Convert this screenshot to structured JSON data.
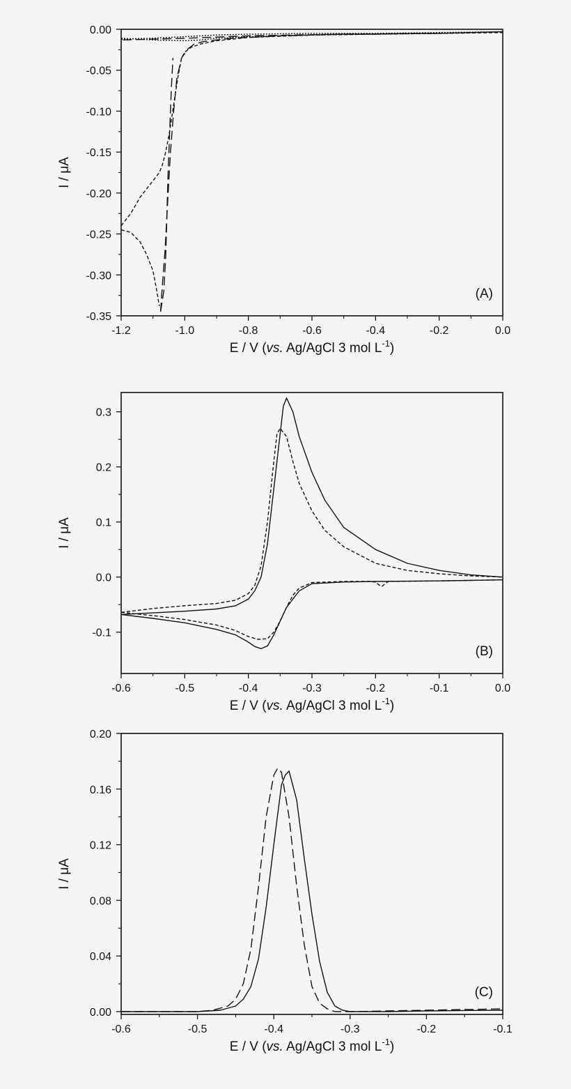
{
  "chart_data": [
    {
      "type": "line",
      "panel_label": "(A)",
      "xlabel": {
        "pre": "E / V (",
        "ital": "vs.",
        "post": " Ag/AgCl 3 mol L",
        "sup": "-1",
        "close": ")"
      },
      "ylabel": "I / μA",
      "xlim": [
        -1.2,
        0.0
      ],
      "ylim": [
        -0.35,
        0.0
      ],
      "xticks": [
        -1.2,
        -1.0,
        -0.8,
        -0.6,
        -0.4,
        -0.2,
        0.0
      ],
      "xtick_labels": [
        "-1.2",
        "-1.0",
        "-0.8",
        "-0.6",
        "-0.4",
        "-0.2",
        "0.0"
      ],
      "yticks": [
        0.0,
        -0.05,
        -0.1,
        -0.15,
        -0.2,
        -0.25,
        -0.3,
        -0.35
      ],
      "ytick_labels": [
        "0.00",
        "-0.05",
        "-0.10",
        "-0.15",
        "-0.20",
        "-0.25",
        "-0.30",
        "-0.35"
      ],
      "series": [
        {
          "style": "long-dash",
          "x": [
            -1.195,
            -1.0,
            -0.8,
            -0.5,
            -0.2,
            0.0
          ],
          "y": [
            -0.013,
            -0.011,
            -0.008,
            -0.006,
            -0.005,
            -0.003
          ]
        },
        {
          "style": "long-dash",
          "x": [
            -1.076,
            -1.066,
            -1.06,
            -1.057,
            -1.055,
            -1.052,
            -1.047,
            -1.042,
            -1.037
          ],
          "y": [
            -0.345,
            -0.32,
            -0.28,
            -0.24,
            -0.21,
            -0.17,
            -0.12,
            -0.07,
            -0.035
          ]
        },
        {
          "style": "long-dash",
          "x": [
            -1.076,
            -1.07,
            -1.062,
            -1.055,
            -1.045,
            -1.035,
            -1.025,
            -1.01,
            -0.99,
            -0.97,
            -0.94,
            -0.9,
            -0.85,
            -0.8,
            -0.7,
            -0.6,
            -0.5,
            -0.4,
            -0.3,
            -0.2,
            -0.1,
            0.0
          ],
          "y": [
            -0.345,
            -0.31,
            -0.27,
            -0.22,
            -0.15,
            -0.1,
            -0.06,
            -0.035,
            -0.024,
            -0.018,
            -0.015,
            -0.013,
            -0.011,
            -0.01,
            -0.008,
            -0.007,
            -0.006,
            -0.006,
            -0.005,
            -0.005,
            -0.004,
            -0.003
          ]
        },
        {
          "style": "short-dash",
          "x": [
            -1.2,
            -1.17,
            -1.14,
            -1.12,
            -1.1,
            -1.09,
            -1.08
          ],
          "y": [
            -0.245,
            -0.248,
            -0.26,
            -0.275,
            -0.295,
            -0.315,
            -0.338
          ]
        },
        {
          "style": "short-dash",
          "x": [
            -1.2,
            -1.17,
            -1.14,
            -1.12,
            -1.1,
            -1.08,
            -1.07,
            -1.06,
            -1.05,
            -1.04,
            -1.03,
            -1.02,
            -1.01,
            -1.0,
            -0.98,
            -0.95,
            -0.9,
            -0.8,
            -0.6,
            -0.4,
            -0.2,
            0.0
          ],
          "y": [
            -0.24,
            -0.225,
            -0.205,
            -0.195,
            -0.185,
            -0.175,
            -0.165,
            -0.15,
            -0.13,
            -0.105,
            -0.08,
            -0.055,
            -0.035,
            -0.028,
            -0.022,
            -0.018,
            -0.014,
            -0.01,
            -0.007,
            -0.006,
            -0.005,
            -0.004
          ]
        },
        {
          "style": "dot",
          "x": [
            -1.2,
            -1.1,
            -1.0,
            -0.95,
            -0.9,
            -0.8,
            -0.6,
            -0.4,
            -0.2,
            0.0
          ],
          "y": [
            -0.012,
            -0.011,
            -0.009,
            -0.008,
            -0.007,
            -0.006,
            -0.005,
            -0.005,
            -0.004,
            -0.003
          ]
        },
        {
          "style": "dot",
          "x": [
            -1.2,
            -1.1,
            -1.0,
            -0.95,
            -0.9,
            -0.8,
            -0.6,
            -0.4,
            -0.2,
            0.0
          ],
          "y": [
            -0.011,
            -0.013,
            -0.014,
            -0.013,
            -0.011,
            -0.009,
            -0.007,
            -0.006,
            -0.005,
            -0.003
          ]
        }
      ]
    },
    {
      "type": "line",
      "panel_label": "(B)",
      "xlabel": {
        "pre": "E / V (",
        "ital": "vs.",
        "post": " Ag/AgCl 3 mol L",
        "sup": "-1",
        "close": ")"
      },
      "ylabel": "I / μA",
      "xlim": [
        -0.6,
        0.0
      ],
      "ylim": [
        -0.175,
        0.335
      ],
      "xticks": [
        -0.6,
        -0.5,
        -0.4,
        -0.3,
        -0.2,
        -0.1,
        0.0
      ],
      "xtick_labels": [
        "-0.6",
        "-0.5",
        "-0.4",
        "-0.3",
        "-0.2",
        "-0.1",
        "0.0"
      ],
      "yticks": [
        -0.1,
        0.0,
        0.1,
        0.2,
        0.3
      ],
      "ytick_labels": [
        "-0.1",
        "0.0",
        "0.1",
        "0.2",
        "0.3"
      ],
      "series": [
        {
          "style": "solid",
          "x": [
            -0.6,
            -0.55,
            -0.5,
            -0.45,
            -0.42,
            -0.4,
            -0.39,
            -0.38,
            -0.37,
            -0.36,
            -0.35,
            -0.345,
            -0.34,
            -0.33,
            -0.32,
            -0.3,
            -0.28,
            -0.25,
            -0.2,
            -0.15,
            -0.1,
            -0.05,
            0.0
          ],
          "y": [
            -0.068,
            -0.065,
            -0.062,
            -0.058,
            -0.052,
            -0.04,
            -0.025,
            0.0,
            0.06,
            0.16,
            0.26,
            0.31,
            0.325,
            0.3,
            0.255,
            0.19,
            0.14,
            0.09,
            0.05,
            0.025,
            0.012,
            0.004,
            0.0
          ]
        },
        {
          "style": "solid",
          "x": [
            -0.6,
            -0.55,
            -0.5,
            -0.45,
            -0.42,
            -0.4,
            -0.39,
            -0.38,
            -0.37,
            -0.36,
            -0.35,
            -0.34,
            -0.32,
            -0.3,
            -0.25,
            -0.2,
            -0.1,
            0.0
          ],
          "y": [
            -0.068,
            -0.075,
            -0.083,
            -0.095,
            -0.105,
            -0.118,
            -0.126,
            -0.13,
            -0.125,
            -0.105,
            -0.08,
            -0.055,
            -0.025,
            -0.012,
            -0.009,
            -0.008,
            -0.007,
            -0.005
          ]
        },
        {
          "style": "short-dash",
          "x": [
            -0.6,
            -0.55,
            -0.5,
            -0.45,
            -0.42,
            -0.4,
            -0.39,
            -0.38,
            -0.37,
            -0.36,
            -0.355,
            -0.35,
            -0.34,
            -0.33,
            -0.32,
            -0.3,
            -0.28,
            -0.25,
            -0.2,
            -0.15,
            -0.1,
            -0.05,
            0.0
          ],
          "y": [
            -0.064,
            -0.057,
            -0.052,
            -0.048,
            -0.042,
            -0.03,
            -0.015,
            0.02,
            0.1,
            0.21,
            0.26,
            0.27,
            0.255,
            0.21,
            0.17,
            0.12,
            0.085,
            0.055,
            0.025,
            0.012,
            0.006,
            0.002,
            0.0
          ]
        },
        {
          "style": "short-dash",
          "x": [
            -0.6,
            -0.55,
            -0.5,
            -0.45,
            -0.42,
            -0.4,
            -0.385,
            -0.37,
            -0.36,
            -0.35,
            -0.34,
            -0.33,
            -0.32,
            -0.3,
            -0.25,
            -0.21,
            -0.2,
            -0.195,
            -0.19,
            -0.185,
            -0.18,
            -0.1,
            0.0
          ],
          "y": [
            -0.064,
            -0.07,
            -0.077,
            -0.087,
            -0.097,
            -0.108,
            -0.113,
            -0.112,
            -0.1,
            -0.08,
            -0.055,
            -0.033,
            -0.02,
            -0.01,
            -0.008,
            -0.008,
            -0.009,
            -0.014,
            -0.017,
            -0.012,
            -0.008,
            -0.007,
            -0.005
          ]
        }
      ]
    },
    {
      "type": "line",
      "panel_label": "(C)",
      "xlabel": {
        "pre": "E / V (",
        "ital": "vs.",
        "post": " Ag/AgCl 3 mol L",
        "sup": "-1",
        "close": ")"
      },
      "ylabel": "I / μA",
      "xlim": [
        -0.6,
        -0.1
      ],
      "ylim": [
        -0.002,
        0.2
      ],
      "xticks": [
        -0.6,
        -0.5,
        -0.4,
        -0.3,
        -0.2,
        -0.1
      ],
      "xtick_labels": [
        "-0.6",
        "-0.5",
        "-0.4",
        "-0.3",
        "-0.2",
        "-0.1"
      ],
      "yticks": [
        0.0,
        0.04,
        0.08,
        0.12,
        0.16,
        0.2
      ],
      "ytick_labels": [
        "0.00",
        "0.04",
        "0.08",
        "0.12",
        "0.16",
        "0.20"
      ],
      "series": [
        {
          "style": "solid",
          "x": [
            -0.6,
            -0.5,
            -0.47,
            -0.45,
            -0.44,
            -0.43,
            -0.42,
            -0.41,
            -0.4,
            -0.39,
            -0.385,
            -0.38,
            -0.37,
            -0.36,
            -0.35,
            -0.34,
            -0.33,
            -0.32,
            -0.31,
            -0.3,
            -0.25,
            -0.2,
            -0.15,
            -0.1
          ],
          "y": [
            0.0,
            0.0,
            0.001,
            0.004,
            0.009,
            0.018,
            0.038,
            0.075,
            0.12,
            0.163,
            0.17,
            0.173,
            0.152,
            0.11,
            0.07,
            0.036,
            0.014,
            0.004,
            0.001,
            0.0,
            0.0,
            0.0005,
            0.0008,
            0.001
          ]
        },
        {
          "style": "long-dash",
          "x": [
            -0.6,
            -0.5,
            -0.48,
            -0.46,
            -0.45,
            -0.44,
            -0.43,
            -0.42,
            -0.41,
            -0.4,
            -0.395,
            -0.39,
            -0.38,
            -0.37,
            -0.36,
            -0.35,
            -0.34,
            -0.33,
            -0.32,
            -0.3,
            -0.25,
            -0.2,
            -0.15,
            -0.1
          ],
          "y": [
            0.0,
            0.0,
            0.001,
            0.004,
            0.009,
            0.02,
            0.045,
            0.09,
            0.14,
            0.17,
            0.175,
            0.172,
            0.14,
            0.09,
            0.048,
            0.018,
            0.006,
            0.002,
            0.0,
            0.0,
            0.0005,
            0.001,
            0.0015,
            0.002
          ]
        }
      ]
    }
  ]
}
